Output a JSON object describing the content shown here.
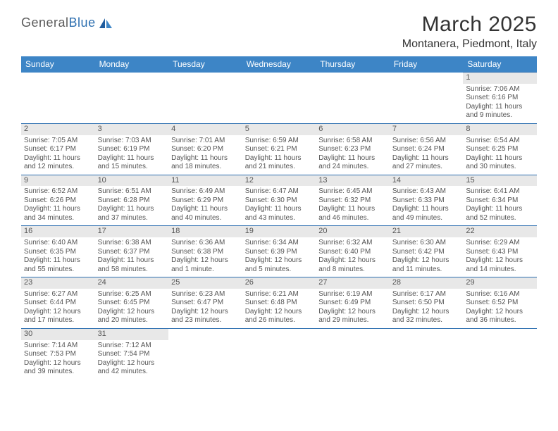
{
  "logo": {
    "text1": "General",
    "text2": "Blue"
  },
  "title": "March 2025",
  "location": "Montanera, Piedmont, Italy",
  "header_bg": "#3d85c6",
  "border_color": "#2d6fb0",
  "columns": [
    "Sunday",
    "Monday",
    "Tuesday",
    "Wednesday",
    "Thursday",
    "Friday",
    "Saturday"
  ],
  "weeks": [
    [
      null,
      null,
      null,
      null,
      null,
      null,
      {
        "d": "1",
        "sr": "7:06 AM",
        "ss": "6:16 PM",
        "dl": "11 hours and 9 minutes."
      }
    ],
    [
      {
        "d": "2",
        "sr": "7:05 AM",
        "ss": "6:17 PM",
        "dl": "11 hours and 12 minutes."
      },
      {
        "d": "3",
        "sr": "7:03 AM",
        "ss": "6:19 PM",
        "dl": "11 hours and 15 minutes."
      },
      {
        "d": "4",
        "sr": "7:01 AM",
        "ss": "6:20 PM",
        "dl": "11 hours and 18 minutes."
      },
      {
        "d": "5",
        "sr": "6:59 AM",
        "ss": "6:21 PM",
        "dl": "11 hours and 21 minutes."
      },
      {
        "d": "6",
        "sr": "6:58 AM",
        "ss": "6:23 PM",
        "dl": "11 hours and 24 minutes."
      },
      {
        "d": "7",
        "sr": "6:56 AM",
        "ss": "6:24 PM",
        "dl": "11 hours and 27 minutes."
      },
      {
        "d": "8",
        "sr": "6:54 AM",
        "ss": "6:25 PM",
        "dl": "11 hours and 30 minutes."
      }
    ],
    [
      {
        "d": "9",
        "sr": "6:52 AM",
        "ss": "6:26 PM",
        "dl": "11 hours and 34 minutes."
      },
      {
        "d": "10",
        "sr": "6:51 AM",
        "ss": "6:28 PM",
        "dl": "11 hours and 37 minutes."
      },
      {
        "d": "11",
        "sr": "6:49 AM",
        "ss": "6:29 PM",
        "dl": "11 hours and 40 minutes."
      },
      {
        "d": "12",
        "sr": "6:47 AM",
        "ss": "6:30 PM",
        "dl": "11 hours and 43 minutes."
      },
      {
        "d": "13",
        "sr": "6:45 AM",
        "ss": "6:32 PM",
        "dl": "11 hours and 46 minutes."
      },
      {
        "d": "14",
        "sr": "6:43 AM",
        "ss": "6:33 PM",
        "dl": "11 hours and 49 minutes."
      },
      {
        "d": "15",
        "sr": "6:41 AM",
        "ss": "6:34 PM",
        "dl": "11 hours and 52 minutes."
      }
    ],
    [
      {
        "d": "16",
        "sr": "6:40 AM",
        "ss": "6:35 PM",
        "dl": "11 hours and 55 minutes."
      },
      {
        "d": "17",
        "sr": "6:38 AM",
        "ss": "6:37 PM",
        "dl": "11 hours and 58 minutes."
      },
      {
        "d": "18",
        "sr": "6:36 AM",
        "ss": "6:38 PM",
        "dl": "12 hours and 1 minute."
      },
      {
        "d": "19",
        "sr": "6:34 AM",
        "ss": "6:39 PM",
        "dl": "12 hours and 5 minutes."
      },
      {
        "d": "20",
        "sr": "6:32 AM",
        "ss": "6:40 PM",
        "dl": "12 hours and 8 minutes."
      },
      {
        "d": "21",
        "sr": "6:30 AM",
        "ss": "6:42 PM",
        "dl": "12 hours and 11 minutes."
      },
      {
        "d": "22",
        "sr": "6:29 AM",
        "ss": "6:43 PM",
        "dl": "12 hours and 14 minutes."
      }
    ],
    [
      {
        "d": "23",
        "sr": "6:27 AM",
        "ss": "6:44 PM",
        "dl": "12 hours and 17 minutes."
      },
      {
        "d": "24",
        "sr": "6:25 AM",
        "ss": "6:45 PM",
        "dl": "12 hours and 20 minutes."
      },
      {
        "d": "25",
        "sr": "6:23 AM",
        "ss": "6:47 PM",
        "dl": "12 hours and 23 minutes."
      },
      {
        "d": "26",
        "sr": "6:21 AM",
        "ss": "6:48 PM",
        "dl": "12 hours and 26 minutes."
      },
      {
        "d": "27",
        "sr": "6:19 AM",
        "ss": "6:49 PM",
        "dl": "12 hours and 29 minutes."
      },
      {
        "d": "28",
        "sr": "6:17 AM",
        "ss": "6:50 PM",
        "dl": "12 hours and 32 minutes."
      },
      {
        "d": "29",
        "sr": "6:16 AM",
        "ss": "6:52 PM",
        "dl": "12 hours and 36 minutes."
      }
    ],
    [
      {
        "d": "30",
        "sr": "7:14 AM",
        "ss": "7:53 PM",
        "dl": "12 hours and 39 minutes."
      },
      {
        "d": "31",
        "sr": "7:12 AM",
        "ss": "7:54 PM",
        "dl": "12 hours and 42 minutes."
      },
      null,
      null,
      null,
      null,
      null
    ]
  ],
  "labels": {
    "sunrise": "Sunrise:",
    "sunset": "Sunset:",
    "daylight": "Daylight:"
  }
}
